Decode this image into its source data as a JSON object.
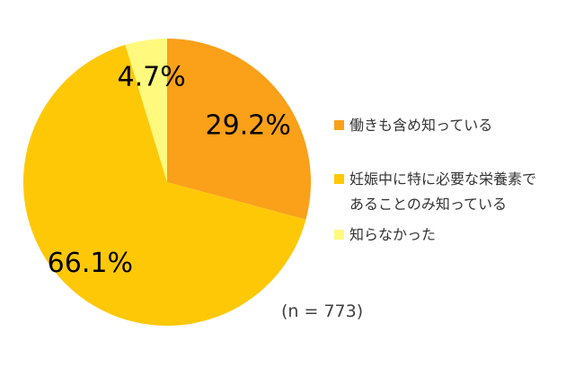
{
  "chart_data": {
    "type": "pie",
    "title": "",
    "n_label": "(n = 773)",
    "legend_position": "right",
    "direction": "clockwise",
    "start_angle_deg": 0,
    "value_label_color": "#000000",
    "background_color": "#ffffff",
    "slices": [
      {
        "label": "働きも含め知っている",
        "value": 29.2,
        "display": "29.2%",
        "color": "#FAA019"
      },
      {
        "label": "妊娠中に特に必要な栄養素であることのみ知っている",
        "value": 66.1,
        "display": "66.1%",
        "color": "#FFC807"
      },
      {
        "label": "知らなかった",
        "value": 4.7,
        "display": "4.7%",
        "color": "#FFF97D"
      }
    ]
  }
}
